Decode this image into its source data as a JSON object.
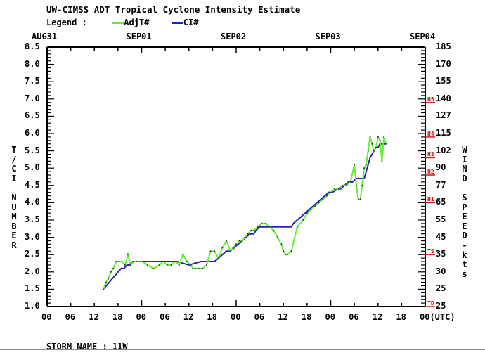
{
  "title": "UW-CIMSS ADT Tropical Cyclone Intensity Estimate",
  "legend": {
    "label": "Legend :",
    "items": [
      {
        "name": "AdjT#",
        "color": "#66ee33"
      },
      {
        "name": "CI#",
        "color": "#2222bb"
      }
    ]
  },
  "storm_name_label": "STORM NAME : 11W",
  "left_axis_label": "T/CI NUMBER",
  "right_axis_label": "WIND SPEED-kts",
  "chart_data": {
    "type": "line",
    "title": "UW-CIMSS ADT Tropical Cyclone Intensity Estimate",
    "xlabel": "(UTC)",
    "ylabel": "T/CI NUMBER",
    "y2label": "WIND SPEED-kts",
    "ylim": [
      1.0,
      8.5
    ],
    "xlim_hours_from_AUG31_00Z": [
      0,
      96
    ],
    "date_labels": [
      "AUG31",
      "SEP01",
      "SEP02",
      "SEP03",
      "SEP04"
    ],
    "x_tick_labels": [
      "00",
      "06",
      "12",
      "18",
      "00",
      "06",
      "12",
      "18",
      "00",
      "06",
      "12",
      "18",
      "00",
      "06",
      "12",
      "18",
      "00(UTC)"
    ],
    "y_tick_labels": [
      "1.0",
      "1.5",
      "2.0",
      "2.5",
      "3.0",
      "3.5",
      "4.0",
      "4.5",
      "5.0",
      "5.5",
      "6.0",
      "6.5",
      "7.0",
      "7.5",
      "8.0",
      "8.5"
    ],
    "y2_tick_labels": [
      "25",
      "25",
      "30",
      "35",
      "45",
      "55",
      "65",
      "77",
      "90",
      "102",
      "115",
      "127",
      "140",
      "155",
      "170",
      "185"
    ],
    "category_markers": [
      {
        "label": "TD",
        "ci": 1.0
      },
      {
        "label": "TS",
        "ci": 2.5
      },
      {
        "label": "H1",
        "ci": 4.0
      },
      {
        "label": "H2",
        "ci": 4.8
      },
      {
        "label": "H3",
        "ci": 5.3
      },
      {
        "label": "H4",
        "ci": 5.9
      },
      {
        "label": "H5",
        "ci": 6.9
      }
    ],
    "grid": false,
    "legend_position": "top-left",
    "series": [
      {
        "name": "AdjT#",
        "color": "#66ee33",
        "x_hours": [
          14.3,
          15.0,
          15.5,
          16.2,
          16.8,
          17.5,
          18.2,
          19.0,
          19.8,
          20.5,
          21.2,
          22.0,
          22.8,
          23.5,
          24.2,
          25.5,
          27.0,
          28.5,
          29.5,
          30.5,
          31.5,
          32.5,
          33.5,
          34.5,
          35.5,
          36.5,
          37.0,
          37.7,
          38.5,
          39.5,
          40.5,
          41.5,
          42.5,
          43.5,
          44.5,
          45.5,
          46.5,
          47.2,
          48.0,
          48.8,
          49.5,
          50.2,
          51.0,
          51.8,
          52.5,
          53.5,
          54.5,
          55.5,
          56.5,
          57.5,
          58.5,
          59.5,
          60.0,
          60.5,
          61.0,
          62.0,
          63.5,
          65.0,
          66.0,
          67.0,
          68.0,
          69.0,
          70.0,
          71.0,
          72.0,
          73.0,
          74.0,
          75.0,
          76.0,
          77.0,
          78.0,
          78.5,
          79.0,
          79.5,
          80.0,
          80.5,
          81.0,
          81.5,
          82.0,
          82.5,
          83.0,
          83.5,
          84.0,
          84.5,
          85.0,
          85.5,
          86.0
        ],
        "values": [
          1.5,
          1.7,
          1.8,
          2.0,
          2.1,
          2.3,
          2.3,
          2.3,
          2.2,
          2.5,
          2.2,
          2.3,
          2.3,
          2.3,
          2.3,
          2.2,
          2.1,
          2.2,
          2.3,
          2.2,
          2.2,
          2.3,
          2.2,
          2.5,
          2.3,
          2.2,
          2.1,
          2.1,
          2.1,
          2.1,
          2.2,
          2.6,
          2.6,
          2.4,
          2.7,
          2.9,
          2.6,
          2.7,
          2.8,
          2.9,
          2.9,
          3.0,
          3.1,
          3.2,
          3.2,
          3.3,
          3.4,
          3.4,
          3.3,
          3.2,
          3.0,
          2.8,
          2.6,
          2.5,
          2.5,
          2.6,
          3.3,
          3.5,
          3.7,
          3.8,
          3.9,
          4.0,
          4.1,
          4.2,
          4.3,
          4.4,
          4.4,
          4.5,
          4.5,
          4.6,
          5.1,
          4.5,
          4.1,
          4.1,
          4.5,
          5.0,
          5.1,
          5.5,
          5.9,
          5.7,
          5.5,
          5.6,
          5.9,
          5.8,
          5.2,
          5.9,
          5.7
        ]
      },
      {
        "name": "CI#",
        "color": "#2222bb",
        "x_hours": [
          14.3,
          15.0,
          15.8,
          16.5,
          17.3,
          18.0,
          18.8,
          19.5,
          20.3,
          21.0,
          21.8,
          22.5,
          24.0,
          27.0,
          30.0,
          33.0,
          36.0,
          39.0,
          42.0,
          42.5,
          43.5,
          44.5,
          45.5,
          46.5,
          47.5,
          48.5,
          49.5,
          50.5,
          51.5,
          52.5,
          53.0,
          54.0,
          56.0,
          58.0,
          60.0,
          62.0,
          62.5,
          63.5,
          64.5,
          65.5,
          66.5,
          67.5,
          68.5,
          69.5,
          70.5,
          71.5,
          72.5,
          73.5,
          74.5,
          75.5,
          76.5,
          77.5,
          78.5,
          79.5,
          80.5,
          81.0,
          81.5,
          82.0,
          82.5,
          83.0,
          83.5,
          84.0,
          84.5,
          85.0,
          86.0
        ],
        "values": [
          1.5,
          1.6,
          1.7,
          1.8,
          1.9,
          2.0,
          2.1,
          2.1,
          2.2,
          2.2,
          2.3,
          2.3,
          2.3,
          2.3,
          2.3,
          2.3,
          2.2,
          2.3,
          2.3,
          2.3,
          2.4,
          2.5,
          2.6,
          2.6,
          2.7,
          2.8,
          2.9,
          3.0,
          3.1,
          3.1,
          3.2,
          3.3,
          3.3,
          3.3,
          3.3,
          3.3,
          3.4,
          3.5,
          3.6,
          3.7,
          3.8,
          3.9,
          4.0,
          4.1,
          4.2,
          4.3,
          4.3,
          4.4,
          4.4,
          4.5,
          4.6,
          4.6,
          4.7,
          4.7,
          4.7,
          4.9,
          5.1,
          5.3,
          5.4,
          5.5,
          5.6,
          5.6,
          5.7,
          5.7,
          5.7
        ]
      }
    ]
  }
}
